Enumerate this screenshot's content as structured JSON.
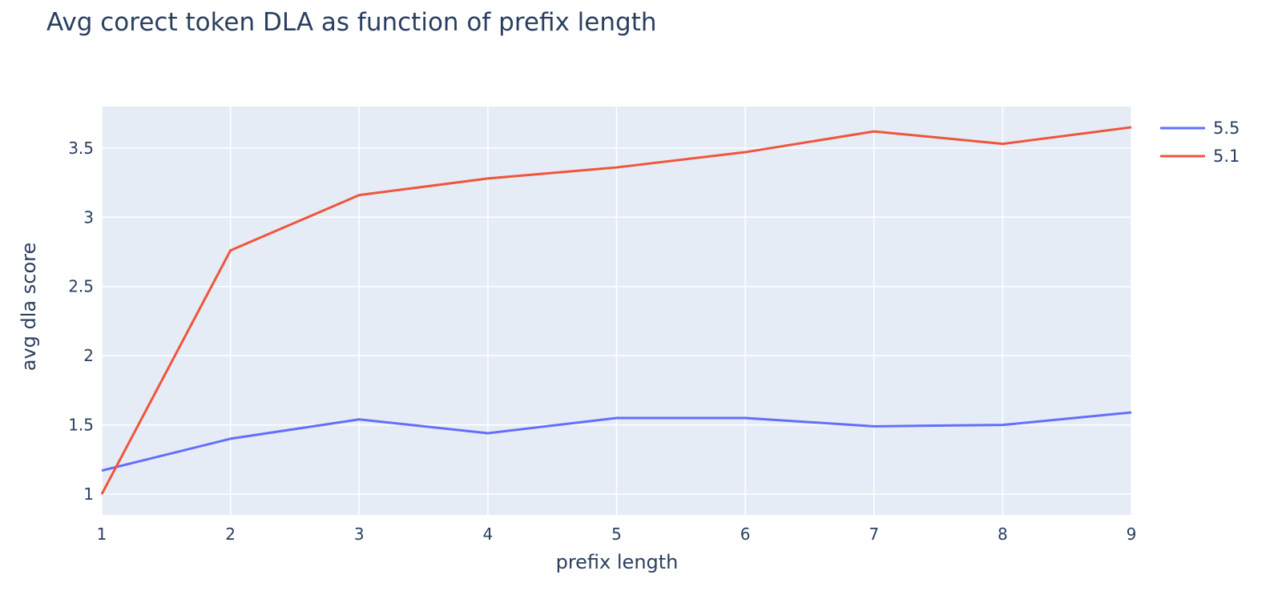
{
  "chart_data": {
    "type": "line",
    "title": "Avg corect token DLA as function of prefix length",
    "xlabel": "prefix length",
    "ylabel": "avg dla score",
    "x": [
      1,
      2,
      3,
      4,
      5,
      6,
      7,
      8,
      9
    ],
    "xlim": [
      1,
      9
    ],
    "ylim": [
      0.85,
      3.8
    ],
    "x_ticks": [
      "1",
      "2",
      "3",
      "4",
      "5",
      "6",
      "7",
      "8",
      "9"
    ],
    "y_ticks": [
      "1",
      "1.5",
      "2",
      "2.5",
      "3",
      "3.5"
    ],
    "grid": true,
    "legend_position": "top-right",
    "series": [
      {
        "name": "5.5",
        "color": "#636efa",
        "values": [
          1.17,
          1.4,
          1.54,
          1.44,
          1.55,
          1.55,
          1.49,
          1.5,
          1.59
        ]
      },
      {
        "name": "5.1",
        "color": "#ef553b",
        "values": [
          1.0,
          2.76,
          3.16,
          3.28,
          3.36,
          3.47,
          3.62,
          3.53,
          3.65
        ]
      }
    ],
    "plot_background": "#e5ecf6",
    "grid_color": "#ffffff",
    "text_color": "#2a3f5f"
  }
}
